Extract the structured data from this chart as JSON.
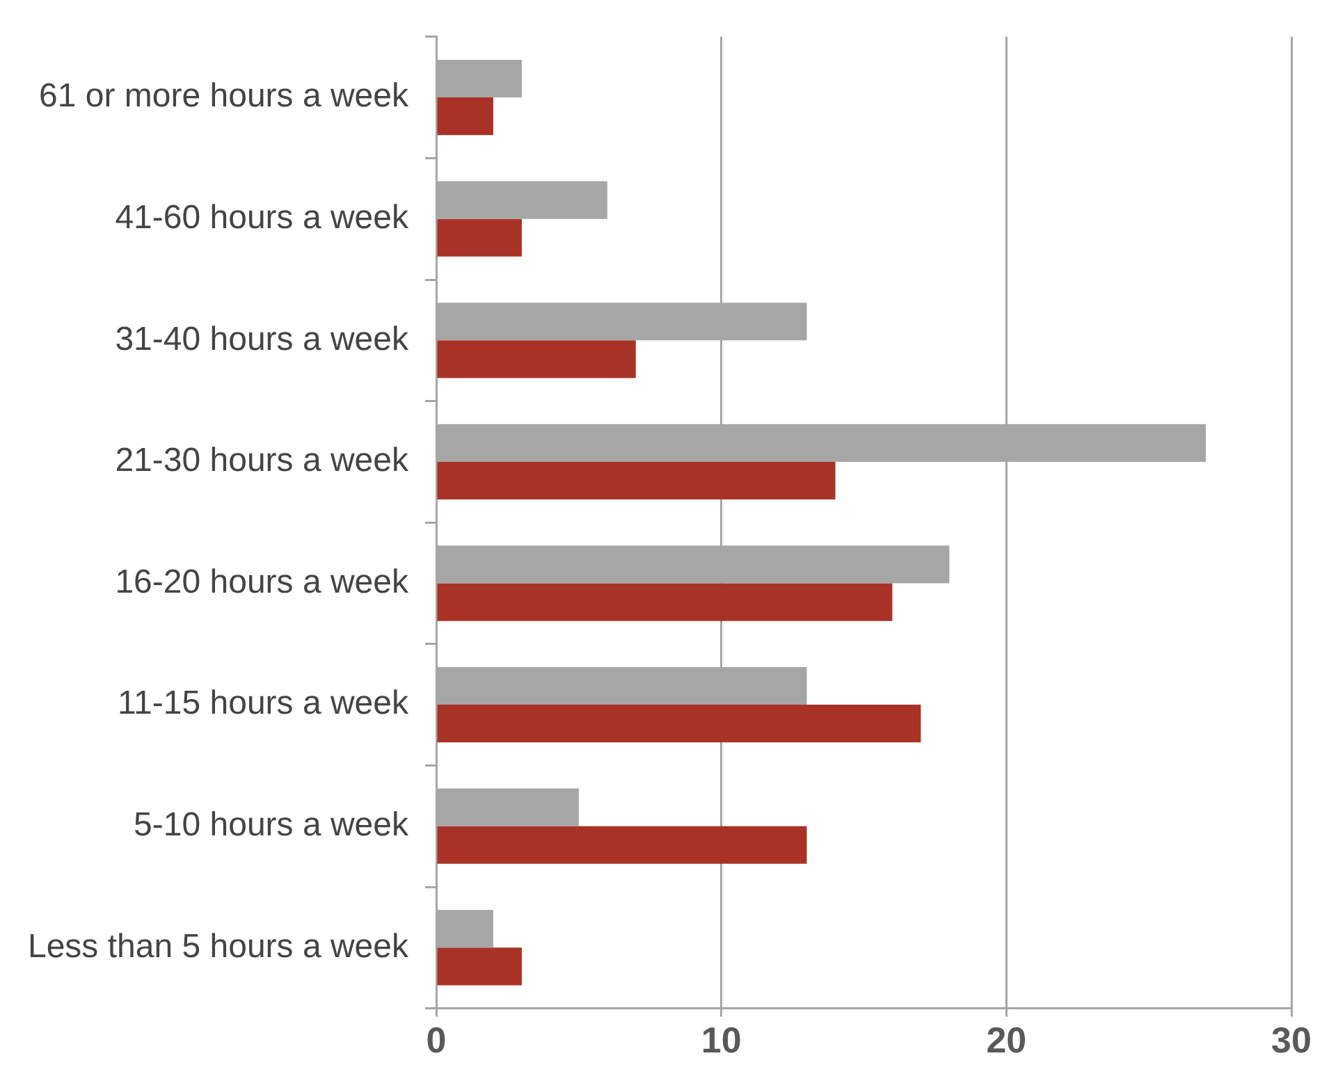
{
  "chart_data": {
    "type": "bar",
    "orientation": "horizontal",
    "categories": [
      "61 or more hours a week",
      "41-60 hours a week",
      "31-40 hours a week",
      "21-30 hours a week",
      "16-20 hours a week",
      "11-15 hours a week",
      "5-10 hours a week",
      "Less than 5 hours a week"
    ],
    "series": [
      {
        "color": "#a6a6a6",
        "values": [
          3,
          6,
          13,
          27,
          18,
          13,
          5,
          2
        ]
      },
      {
        "color": "#a93226",
        "values": [
          2,
          3,
          7,
          14,
          16,
          17,
          13,
          3
        ]
      }
    ],
    "xlim": [
      0,
      30
    ],
    "xticks": [
      0,
      10,
      20,
      30
    ],
    "grid": "x",
    "legend": false
  }
}
